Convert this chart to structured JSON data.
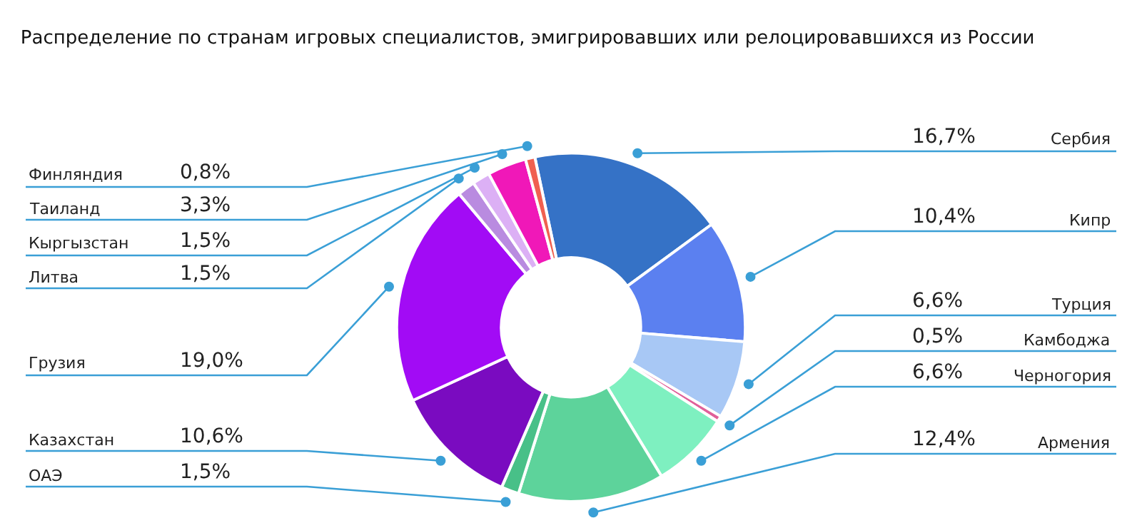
{
  "chart_data": {
    "type": "donut",
    "title": "Распределение по странам игровых специалистов, эмигрировавших или релоцировавшихся из России",
    "categories": [
      "Сербия",
      "Кипр",
      "Турция",
      "Камбоджа",
      "Черногория",
      "Армения",
      "ОАЭ",
      "Казахстан",
      "Грузия",
      "Литва",
      "Кыргызстан",
      "Таиланд",
      "Финляндия"
    ],
    "values": [
      16.7,
      10.4,
      6.6,
      0.5,
      6.6,
      12.4,
      1.5,
      10.6,
      19.0,
      1.5,
      1.5,
      3.3,
      0.8
    ],
    "value_labels": [
      "16,7%",
      "10,4%",
      "6,6%",
      "0,5%",
      "6,6%",
      "12,4%",
      "1,5%",
      "10,6%",
      "19,0%",
      "1,5%",
      "1,5%",
      "3,3%",
      "0,8%"
    ],
    "colors": [
      "#3572c6",
      "#5b80f0",
      "#a8c8f5",
      "#e0609a",
      "#7ef0c0",
      "#5dd39b",
      "#48c088",
      "#7a0bc0",
      "#a20bf5",
      "#b98be0",
      "#dcb0f5",
      "#f018b8",
      "#f06050"
    ],
    "legend": false
  }
}
